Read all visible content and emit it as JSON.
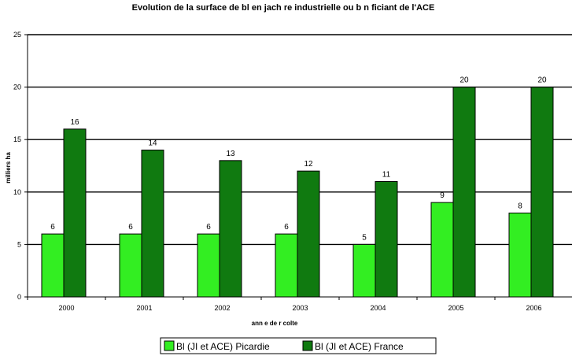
{
  "chart_data": {
    "type": "bar",
    "title": "Evolution de la surface de bl   en jach  re industrielle ou b  n  ficiant de l'ACE",
    "xlabel": "ann  e de r colte",
    "ylabel": "milliers ha",
    "ylim": [
      0,
      25
    ],
    "yticks": [
      "0",
      "5",
      "10",
      "15",
      "20",
      "25"
    ],
    "grid": true,
    "legend_position": "bottom",
    "categories": [
      "2000",
      "2001",
      "2002",
      "2003",
      "2004",
      "2005",
      "2006"
    ],
    "series": [
      {
        "name": "Bl    (JI et ACE) Picardie",
        "values": [
          6,
          6,
          6,
          6,
          5,
          9,
          8
        ],
        "color": "#33ee22"
      },
      {
        "name": "Bl    (JI et ACE) France",
        "values": [
          16,
          14,
          13,
          12,
          11,
          20,
          20
        ],
        "color": "#107a10"
      }
    ]
  }
}
